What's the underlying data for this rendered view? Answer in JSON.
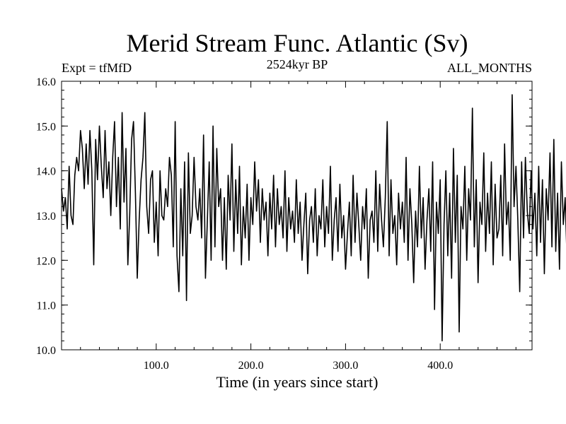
{
  "chart_data": {
    "type": "line",
    "title": "Merid Stream Func. Atlantic (Sv)",
    "subtitle_left": "Expt = tfMfD",
    "subtitle_center": "2524kyr BP",
    "subtitle_right": "ALL_MONTHS",
    "xlabel": "Time (in years since start)",
    "ylabel": "",
    "xlim": [
      0,
      497
    ],
    "ylim": [
      10.0,
      16.0
    ],
    "x_ticks": [
      {
        "value": 100,
        "label": "100.0"
      },
      {
        "value": 200,
        "label": "200.0"
      },
      {
        "value": 300,
        "label": "300.0"
      },
      {
        "value": 400,
        "label": "400.0"
      }
    ],
    "y_ticks": [
      {
        "value": 10.0,
        "label": "10.0"
      },
      {
        "value": 11.0,
        "label": "11.0"
      },
      {
        "value": 12.0,
        "label": "12.0"
      },
      {
        "value": 13.0,
        "label": "13.0"
      },
      {
        "value": 14.0,
        "label": "14.0"
      },
      {
        "value": 15.0,
        "label": "15.0"
      },
      {
        "value": 16.0,
        "label": "16.0"
      }
    ],
    "grid": false,
    "series": [
      {
        "name": "Merid Stream Func. Atlantic",
        "x_start": 0,
        "x_step": 2,
        "values": [
          13.6,
          13.1,
          13.4,
          12.7,
          14.1,
          13.0,
          12.8,
          13.9,
          14.3,
          14.0,
          14.9,
          14.5,
          13.6,
          14.6,
          13.7,
          14.9,
          14.0,
          11.9,
          14.7,
          13.8,
          15.0,
          14.1,
          13.4,
          14.9,
          13.6,
          14.2,
          13.0,
          14.3,
          15.1,
          13.2,
          14.3,
          12.7,
          15.3,
          13.3,
          14.5,
          11.9,
          13.0,
          14.7,
          15.1,
          13.5,
          11.6,
          12.9,
          13.8,
          14.3,
          15.3,
          13.2,
          12.6,
          13.8,
          14.0,
          12.4,
          13.3,
          12.1,
          14.0,
          13.0,
          12.9,
          13.6,
          13.2,
          14.3,
          13.9,
          12.3,
          15.1,
          12.1,
          11.3,
          13.6,
          12.1,
          14.2,
          11.1,
          14.4,
          12.6,
          13.0,
          14.3,
          13.2,
          12.9,
          13.6,
          12.5,
          14.8,
          11.6,
          12.9,
          14.2,
          12.0,
          15.0,
          12.3,
          14.5,
          13.2,
          13.6,
          12.0,
          13.4,
          11.8,
          13.9,
          12.9,
          14.6,
          12.2,
          13.8,
          12.6,
          14.1,
          11.9,
          13.2,
          12.5,
          13.7,
          12.0,
          13.4,
          12.8,
          14.2,
          13.1,
          13.8,
          12.4,
          13.6,
          12.9,
          13.3,
          12.1,
          13.5,
          12.7,
          13.9,
          12.3,
          13.6,
          12.8,
          13.2,
          12.5,
          14.0,
          12.2,
          13.4,
          12.7,
          13.1,
          12.4,
          13.8,
          12.6,
          13.3,
          12.0,
          12.8,
          13.5,
          11.7,
          12.9,
          13.2,
          12.4,
          13.6,
          12.1,
          13.0,
          12.7,
          13.8,
          12.3,
          13.2,
          12.6,
          14.1,
          12.0,
          12.9,
          13.4,
          12.2,
          13.7,
          12.5,
          13.0,
          11.8,
          12.6,
          13.3,
          12.1,
          13.9,
          12.4,
          13.5,
          12.8,
          12.0,
          13.2,
          12.7,
          13.6,
          11.6,
          12.9,
          13.1,
          12.4,
          14.0,
          12.2,
          13.7,
          12.9,
          12.3,
          13.4,
          15.1,
          12.1,
          13.8,
          12.6,
          13.0,
          11.9,
          13.5,
          12.7,
          13.3,
          12.4,
          14.3,
          12.0,
          13.6,
          12.8,
          11.5,
          13.1,
          12.3,
          14.1,
          12.5,
          13.4,
          11.8,
          12.9,
          13.6,
          12.2,
          14.2,
          10.9,
          13.3,
          12.6,
          13.8,
          10.2,
          12.8,
          14.0,
          12.1,
          13.5,
          11.6,
          14.5,
          12.4,
          13.9,
          10.4,
          13.2,
          12.7,
          14.1,
          12.0,
          13.6,
          12.9,
          15.4,
          12.3,
          13.8,
          11.5,
          13.3,
          12.8,
          14.4,
          12.2,
          13.5,
          12.6,
          14.2,
          11.9,
          13.7,
          12.5,
          12.7,
          13.9,
          12.1,
          14.6,
          12.8,
          13.3,
          12.0,
          15.7,
          13.2,
          14.1,
          12.9,
          11.3,
          14.2,
          12.5,
          14.3,
          13.1,
          12.6,
          14.0,
          12.7,
          13.5,
          12.1,
          14.1,
          12.4,
          13.8,
          11.7,
          13.6,
          12.9,
          14.4,
          12.3,
          14.7,
          12.2,
          13.5,
          11.8,
          14.2,
          12.8,
          13.4,
          12.0,
          13.9,
          12.6,
          14.1,
          10.4,
          13.7,
          12.9,
          14.5,
          12.5,
          13.3,
          12.7,
          14.8,
          12.4,
          13.9,
          12.2,
          15.0,
          12.8,
          14.3,
          13.1,
          12.3,
          13.6,
          12.9,
          14.4,
          13.2,
          12.0,
          11.2,
          13.7,
          12.5,
          14.1,
          12.8,
          13.4,
          10.5,
          13.8,
          12.6,
          14.3,
          13.1,
          14.8,
          12.9,
          13.6,
          12.4,
          14.2,
          13.3,
          12.7,
          14.6,
          13.0,
          12.2,
          13.8,
          12.6,
          14.4,
          12.9,
          13.5,
          10.7,
          13.7,
          12.4,
          14.8,
          12.1
        ]
      }
    ]
  }
}
